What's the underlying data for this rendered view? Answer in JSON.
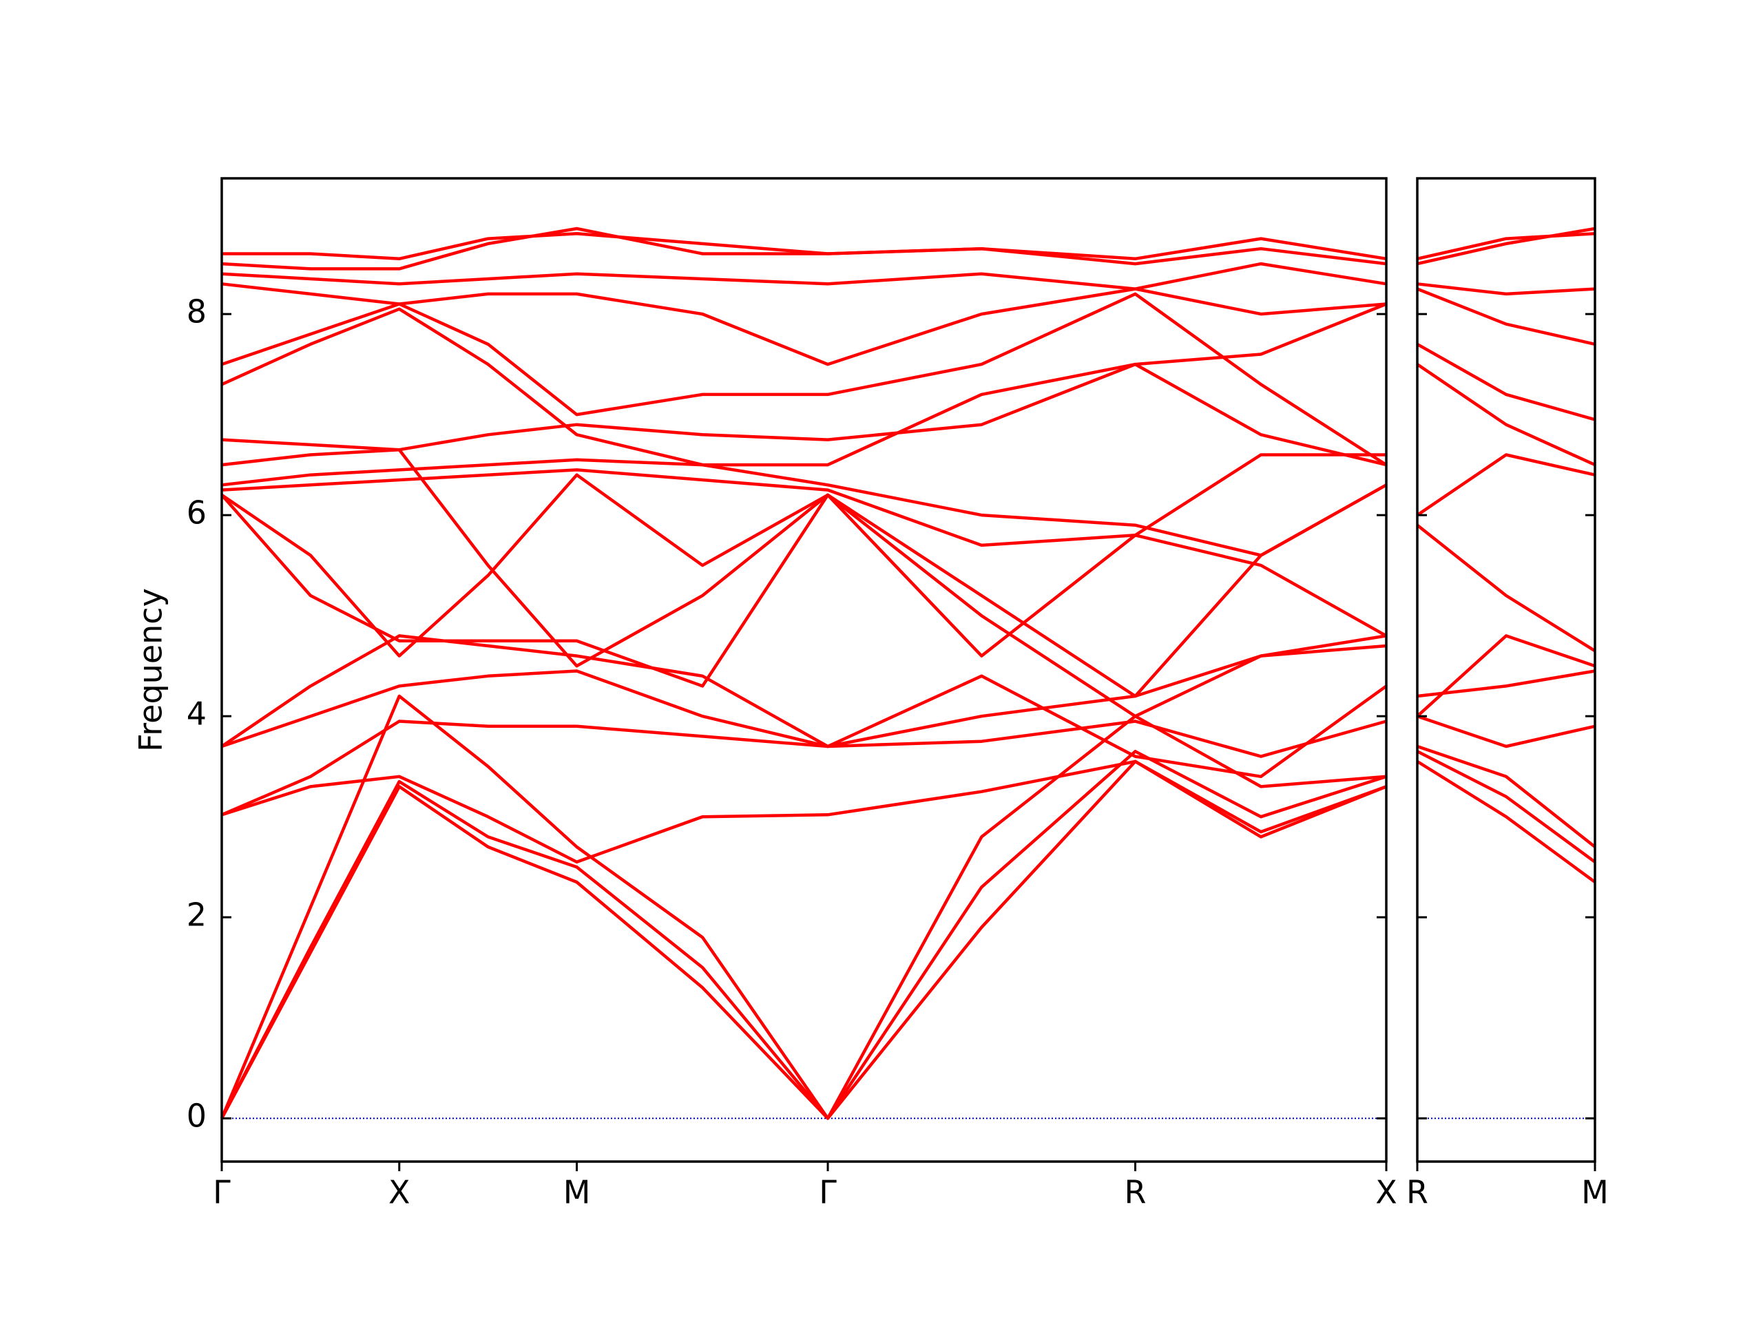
{
  "chart_data": [
    {
      "type": "line",
      "ylabel": "Frequency",
      "color": "#ff0000",
      "xlim": [
        0,
        3.28
      ],
      "ylim": [
        -0.43,
        9.35
      ],
      "yticks": [
        0,
        2,
        4,
        6,
        8
      ],
      "xticks": [
        {
          "value": 0,
          "label": "Γ"
        },
        {
          "value": 0.5,
          "label": "X"
        },
        {
          "value": 1.0,
          "label": "M"
        },
        {
          "value": 1.707,
          "label": "Γ"
        },
        {
          "value": 2.573,
          "label": "R"
        },
        {
          "value": 3.28,
          "label": "X"
        }
      ],
      "hline": {
        "value": 0,
        "color": "#0000cc"
      },
      "x": [
        0,
        0.25,
        0.5,
        0.75,
        1.0,
        1.354,
        1.707,
        2.14,
        2.573,
        2.927,
        3.28
      ],
      "series": [
        {
          "values": [
            0,
            1.65,
            3.3,
            2.7,
            2.35,
            1.3,
            0,
            1.9,
            3.55,
            2.8,
            3.3
          ]
        },
        {
          "values": [
            0,
            1.7,
            3.35,
            2.8,
            2.5,
            1.5,
            0,
            2.3,
            3.65,
            3.0,
            3.4
          ]
        },
        {
          "values": [
            0,
            2.1,
            4.2,
            3.5,
            2.7,
            1.8,
            0,
            2.8,
            4.0,
            3.3,
            3.4
          ]
        },
        {
          "values": [
            3.02,
            3.3,
            3.4,
            3.0,
            2.55,
            3.0,
            3.02,
            3.25,
            3.55,
            2.85,
            3.3
          ]
        },
        {
          "values": [
            3.02,
            3.4,
            3.95,
            3.9,
            3.9,
            3.8,
            3.7,
            3.75,
            3.95,
            3.6,
            3.95
          ]
        },
        {
          "values": [
            3.7,
            4.0,
            4.3,
            4.4,
            4.45,
            4.0,
            3.7,
            4.4,
            3.6,
            3.4,
            4.3
          ]
        },
        {
          "values": [
            3.7,
            4.3,
            4.8,
            4.7,
            4.6,
            4.4,
            3.7,
            4.0,
            4.2,
            4.6,
            4.7
          ]
        },
        {
          "values": [
            6.2,
            5.2,
            4.75,
            4.75,
            4.75,
            4.3,
            6.2,
            5.0,
            4.0,
            4.6,
            4.8
          ]
        },
        {
          "values": [
            6.2,
            5.6,
            4.6,
            5.4,
            6.4,
            5.5,
            6.2,
            5.2,
            4.2,
            5.6,
            6.3
          ]
        },
        {
          "values": [
            6.25,
            6.3,
            6.35,
            6.4,
            6.45,
            6.35,
            6.25,
            5.7,
            5.8,
            5.5,
            4.8
          ]
        },
        {
          "values": [
            6.3,
            6.4,
            6.45,
            6.5,
            6.55,
            6.5,
            6.3,
            6.0,
            5.9,
            5.6,
            6.3
          ]
        },
        {
          "values": [
            6.5,
            6.6,
            6.65,
            5.5,
            4.5,
            5.2,
            6.2,
            4.6,
            5.8,
            6.6,
            6.6
          ]
        },
        {
          "values": [
            6.75,
            6.7,
            6.65,
            6.8,
            6.9,
            6.8,
            6.75,
            6.9,
            7.5,
            6.8,
            6.5
          ]
        },
        {
          "values": [
            7.3,
            7.7,
            8.05,
            7.5,
            6.8,
            6.5,
            6.5,
            7.2,
            7.5,
            7.6,
            8.1
          ]
        },
        {
          "values": [
            7.5,
            7.8,
            8.1,
            7.7,
            7.0,
            7.2,
            7.2,
            7.5,
            8.2,
            7.3,
            6.5
          ]
        },
        {
          "values": [
            8.3,
            8.2,
            8.1,
            8.2,
            8.2,
            8.0,
            7.5,
            8.0,
            8.25,
            8.0,
            8.1
          ]
        },
        {
          "values": [
            8.4,
            8.35,
            8.3,
            8.35,
            8.4,
            8.35,
            8.3,
            8.4,
            8.25,
            8.5,
            8.3
          ]
        },
        {
          "values": [
            8.5,
            8.45,
            8.45,
            8.7,
            8.85,
            8.6,
            8.6,
            8.65,
            8.55,
            8.75,
            8.55
          ]
        },
        {
          "values": [
            8.6,
            8.6,
            8.55,
            8.75,
            8.8,
            8.7,
            8.6,
            8.65,
            8.5,
            8.65,
            8.5
          ]
        }
      ]
    },
    {
      "type": "line",
      "color": "#ff0000",
      "xlim": [
        0,
        0.5
      ],
      "ylim": [
        -0.43,
        9.35
      ],
      "yticks": [
        0,
        2,
        4,
        6,
        8
      ],
      "xticks": [
        {
          "value": 0,
          "label": "R"
        },
        {
          "value": 0.5,
          "label": "M"
        }
      ],
      "hline": {
        "value": 0,
        "color": "#0000cc"
      },
      "x": [
        0,
        0.25,
        0.5
      ],
      "series": [
        {
          "values": [
            3.55,
            3.0,
            2.35
          ]
        },
        {
          "values": [
            3.65,
            3.2,
            2.55
          ]
        },
        {
          "values": [
            3.7,
            3.4,
            2.7
          ]
        },
        {
          "values": [
            4.0,
            3.7,
            3.9
          ]
        },
        {
          "values": [
            4.2,
            4.3,
            4.45
          ]
        },
        {
          "values": [
            4.0,
            4.8,
            4.5
          ]
        },
        {
          "values": [
            5.9,
            5.2,
            4.65
          ]
        },
        {
          "values": [
            6.0,
            6.6,
            6.4
          ]
        },
        {
          "values": [
            7.5,
            6.9,
            6.5
          ]
        },
        {
          "values": [
            7.7,
            7.2,
            6.95
          ]
        },
        {
          "values": [
            8.25,
            7.9,
            7.7
          ]
        },
        {
          "values": [
            8.3,
            8.2,
            8.25
          ]
        },
        {
          "values": [
            8.5,
            8.7,
            8.85
          ]
        },
        {
          "values": [
            8.55,
            8.75,
            8.8
          ]
        }
      ]
    }
  ]
}
